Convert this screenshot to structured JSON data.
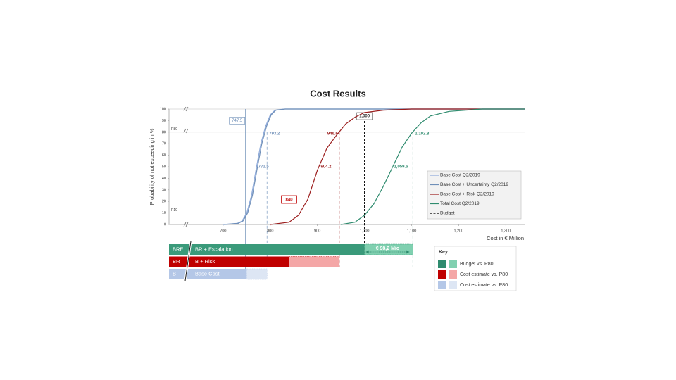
{
  "chart_data": {
    "type": "line",
    "title": "Cost Results",
    "y_label": "Probability of not exceeding in %",
    "x_label": "Cost in € Million",
    "xlim": [
      585,
      1340
    ],
    "xticks": [
      700,
      800,
      900,
      {
        "value": 1000,
        "label": "1,000"
      },
      {
        "value": 1100,
        "label": "1,100"
      },
      {
        "value": 1200,
        "label": "1,200"
      },
      {
        "value": 1300,
        "label": "1,300"
      }
    ],
    "ylim": [
      0,
      100
    ],
    "yticks": [
      0,
      10,
      20,
      30,
      40,
      50,
      60,
      70,
      80,
      90,
      100
    ],
    "percentile_lines": [
      {
        "value": 80,
        "label": "P80"
      },
      {
        "value": 10,
        "label": "P10"
      }
    ],
    "series": [
      {
        "name": "Base Cost Q2/2019",
        "color": "#8eaadb",
        "x": [
          700,
          730,
          740,
          750,
          760,
          770,
          780,
          790,
          800,
          810,
          830,
          900,
          1340
        ],
        "values": [
          0,
          1,
          3,
          10,
          25,
          48,
          70,
          85,
          95,
          99,
          100,
          100,
          100
        ]
      },
      {
        "name": "Base Cost + Uncertainty Q2/2019",
        "color": "#6f8fb8",
        "x": [
          702,
          732,
          742,
          752,
          762,
          772,
          782,
          792,
          802,
          812,
          832,
          902,
          1340
        ],
        "values": [
          0,
          1,
          3,
          10,
          25,
          48,
          70,
          85,
          95,
          99,
          100,
          100,
          100
        ]
      },
      {
        "name": "Base Cost + Risk Q2/2019",
        "color": "#9b1c1c",
        "x": [
          800,
          840,
          860,
          880,
          900,
          920,
          940,
          960,
          980,
          1000,
          1040,
          1100,
          1340
        ],
        "values": [
          0,
          2,
          8,
          22,
          47,
          66,
          77,
          87,
          93,
          97,
          99,
          100,
          100
        ]
      },
      {
        "name": "Total Cost Q2/2019",
        "color": "#2e8b6e",
        "x": [
          950,
          980,
          1000,
          1020,
          1040,
          1060,
          1080,
          1100,
          1120,
          1140,
          1180,
          1250,
          1340
        ],
        "values": [
          0,
          2,
          8,
          18,
          33,
          50,
          67,
          79,
          88,
          94,
          98,
          100,
          100
        ]
      }
    ],
    "budget": {
      "name": "Budget",
      "value": 1000,
      "label": "1,000",
      "color": "#000000"
    },
    "marker": {
      "value": 840,
      "label": "840",
      "color": "#c00000"
    },
    "annotations": [
      {
        "label": "747.5",
        "value": 747.5,
        "p": 10,
        "color": "#6f8fb8"
      },
      {
        "label": "771.5",
        "value": 771.5,
        "p": 50,
        "color": "#6f8fb8"
      },
      {
        "label": "793.2",
        "value": 793.2,
        "p": 80,
        "color": "#6f8fb8"
      },
      {
        "label": "904.2",
        "value": 904.2,
        "p": 50,
        "color": "#9b1c1c"
      },
      {
        "label": "946.6",
        "value": 946.6,
        "p": 80,
        "color": "#9b1c1c"
      },
      {
        "label": "1,059.6",
        "value": 1059.6,
        "p": 50,
        "color": "#2e8b6e"
      },
      {
        "label": "1,102.8",
        "value": 1102.8,
        "p": 80,
        "color": "#2e8b6e"
      }
    ],
    "bars": [
      {
        "code": "BRE",
        "name": "BR + Escalation",
        "value": 1000,
        "extent": 1102.8,
        "color": "#3a9a7a",
        "light_color": "#80d0b0"
      },
      {
        "code": "BR",
        "name": "B + Risk",
        "value": 840,
        "extent": 946.6,
        "color": "#c00000",
        "light_color": "#f4a6a6"
      },
      {
        "code": "B",
        "name": "Base Cost",
        "value": 750,
        "extent": 793.2,
        "color": "#b4c7e7",
        "light_color": "#dde6f4"
      }
    ],
    "delta": {
      "value": 98.2,
      "label": "€ 98,2 Mio"
    },
    "key": {
      "title": "Key",
      "entries": [
        {
          "label": "Budget vs. P80",
          "colors": [
            "#2e8b6e",
            "#80d0b0"
          ]
        },
        {
          "label": "Cost estimate  vs. P80",
          "colors": [
            "#c00000",
            "#f4a6a6"
          ]
        },
        {
          "label": "Cost estimate  vs. P80",
          "colors": [
            "#b4c7e7",
            "#dde6f4"
          ]
        }
      ]
    }
  }
}
